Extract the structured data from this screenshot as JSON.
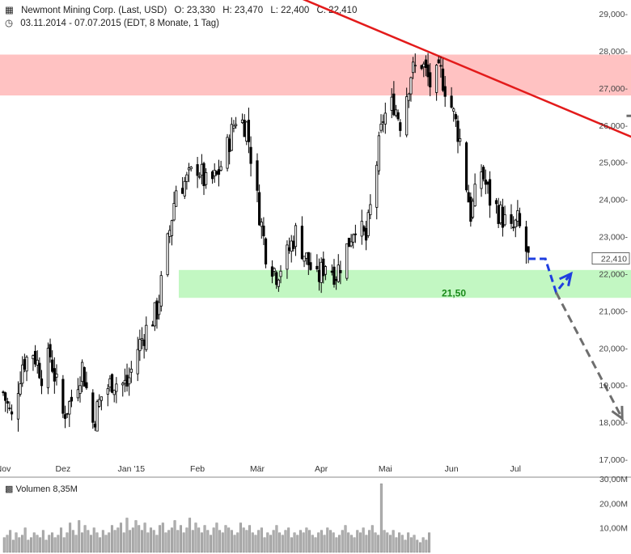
{
  "header": {
    "instrument": "Newmont Mining Corp. (Last, USD)",
    "open": "O: 23,330",
    "high": "H: 23,470",
    "low": "L: 22,400",
    "close": "C: 22,410",
    "range": "03.11.2014 - 07.07.2015 (EDT, 8 Monate, 1 Tag)"
  },
  "volume_label": "Volumen",
  "volume_value": "8,35M",
  "last_price_label": "22,410",
  "support_label": "21,50",
  "colors": {
    "resistance_zone": "#ffc2c2",
    "support_zone": "#c2f7c2",
    "trendline": "#e31b1b",
    "projection_bull": "#1f3fe0",
    "projection_alt": "#6e6e6e",
    "support_text": "#1a8a1a",
    "candles": "#000000",
    "volume_bars": "#b0b0b0"
  },
  "chart_data": {
    "type": "candlestick",
    "ylim": [
      17,
      29
    ],
    "y_ticks": [
      "17,000-",
      "18,000-",
      "19,000-",
      "20,000-",
      "21,000-",
      "22,000-",
      "23,000-",
      "24,000-",
      "25,000-",
      "26,000-",
      "27,000-",
      "28,000-",
      "29,000-"
    ],
    "y_tick_values": [
      17,
      18,
      19,
      20,
      21,
      22,
      23,
      24,
      25,
      26,
      27,
      28,
      29
    ],
    "x_ticks": [
      "Nov",
      "Dez",
      "Jan '15",
      "Feb",
      "Mär",
      "Apr",
      "Mai",
      "Jun",
      "Jul"
    ],
    "x_tick_dates": [
      "2014-11-03",
      "2014-12-01",
      "2015-01-02",
      "2015-02-02",
      "2015-03-02",
      "2015-04-01",
      "2015-05-01",
      "2015-06-01",
      "2015-07-01"
    ],
    "price_path": [
      [
        "2014-11-03",
        18.8
      ],
      [
        "2014-11-07",
        18.1
      ],
      [
        "2014-11-12",
        19.6
      ],
      [
        "2014-11-17",
        19.9
      ],
      [
        "2014-11-21",
        19.3
      ],
      [
        "2014-11-25",
        19.8
      ],
      [
        "2014-12-01",
        18.2
      ],
      [
        "2014-12-05",
        18.6
      ],
      [
        "2014-12-10",
        19.5
      ],
      [
        "2014-12-15",
        18.0
      ],
      [
        "2014-12-19",
        18.7
      ],
      [
        "2014-12-24",
        19.1
      ],
      [
        "2014-12-31",
        19.0
      ],
      [
        "2015-01-05",
        20.0
      ],
      [
        "2015-01-09",
        20.5
      ],
      [
        "2015-01-14",
        21.0
      ],
      [
        "2015-01-19",
        22.8
      ],
      [
        "2015-01-23",
        24.3
      ],
      [
        "2015-01-28",
        24.5
      ],
      [
        "2015-02-02",
        24.9
      ],
      [
        "2015-02-06",
        24.4
      ],
      [
        "2015-02-11",
        24.6
      ],
      [
        "2015-02-16",
        25.4
      ],
      [
        "2015-02-20",
        26.2
      ],
      [
        "2015-02-25",
        26.0
      ],
      [
        "2015-03-02",
        24.0
      ],
      [
        "2015-03-06",
        22.6
      ],
      [
        "2015-03-11",
        22.0
      ],
      [
        "2015-03-16",
        22.5
      ],
      [
        "2015-03-20",
        23.1
      ],
      [
        "2015-03-25",
        22.4
      ],
      [
        "2015-03-30",
        21.8
      ],
      [
        "2015-04-03",
        22.3
      ],
      [
        "2015-04-08",
        22.0
      ],
      [
        "2015-04-13",
        22.7
      ],
      [
        "2015-04-17",
        23.4
      ],
      [
        "2015-04-22",
        22.9
      ],
      [
        "2015-04-27",
        25.0
      ],
      [
        "2015-04-30",
        26.2
      ],
      [
        "2015-05-05",
        26.6
      ],
      [
        "2015-05-08",
        26.1
      ],
      [
        "2015-05-13",
        27.4
      ],
      [
        "2015-05-18",
        27.7
      ],
      [
        "2015-05-22",
        27.1
      ],
      [
        "2015-05-27",
        27.4
      ],
      [
        "2015-06-01",
        26.5
      ],
      [
        "2015-06-05",
        25.6
      ],
      [
        "2015-06-10",
        23.6
      ],
      [
        "2015-06-15",
        24.8
      ],
      [
        "2015-06-19",
        24.0
      ],
      [
        "2015-06-24",
        23.6
      ],
      [
        "2015-06-29",
        23.1
      ],
      [
        "2015-07-02",
        23.4
      ],
      [
        "2015-07-07",
        22.41
      ]
    ],
    "volume_ylim": [
      0,
      30
    ],
    "volume_ticks": [
      "10,00M",
      "20,00M",
      "30,00M"
    ],
    "volume_tick_values": [
      10,
      20,
      30
    ],
    "volume_series": [
      6,
      7,
      9,
      5,
      8,
      6,
      7,
      10,
      5,
      6,
      8,
      7,
      6,
      9,
      5,
      7,
      8,
      6,
      7,
      10,
      6,
      8,
      12,
      9,
      7,
      13,
      8,
      11,
      9,
      7,
      10,
      8,
      6,
      9,
      7,
      8,
      11,
      9,
      10,
      12,
      8,
      14,
      9,
      10,
      13,
      11,
      9,
      12,
      8,
      10,
      9,
      7,
      11,
      12,
      8,
      9,
      10,
      13,
      9,
      11,
      8,
      10,
      14,
      9,
      12,
      10,
      8,
      11,
      9,
      7,
      10,
      12,
      9,
      8,
      11,
      10,
      9,
      7,
      8,
      12,
      10,
      9,
      11,
      8,
      7,
      9,
      10,
      6,
      8,
      7,
      9,
      11,
      8,
      7,
      9,
      10,
      6,
      8,
      7,
      9,
      8,
      10,
      9,
      7,
      6,
      8,
      9,
      7,
      10,
      9,
      8,
      6,
      7,
      9,
      11,
      8,
      7,
      6,
      9,
      8,
      10,
      7,
      9,
      11,
      8,
      7,
      28,
      9,
      8,
      7,
      9,
      6,
      8,
      7,
      5,
      8,
      6,
      7,
      5,
      4,
      6,
      5,
      8
    ],
    "resistance_zone": [
      26.8,
      27.9
    ],
    "support_zone": [
      21.35,
      22.1
    ],
    "support_level": 21.5,
    "trendline": [
      [
        "2015-03-19",
        29.5
      ],
      [
        "2015-09-30",
        24.8
      ]
    ],
    "projection_bull": [
      [
        "2015-07-07",
        22.4
      ],
      [
        "2015-07-15",
        22.4
      ],
      [
        "2015-07-20",
        21.5
      ],
      [
        "2015-07-27",
        22.0
      ]
    ],
    "projection_bear": [
      [
        "2015-07-20",
        21.5
      ],
      [
        "2015-08-20",
        18.1
      ]
    ],
    "projection_alt": [
      [
        "2015-08-22",
        26.25
      ],
      [
        "2015-08-29",
        26.25
      ],
      [
        "2015-09-05",
        27.85
      ]
    ]
  }
}
